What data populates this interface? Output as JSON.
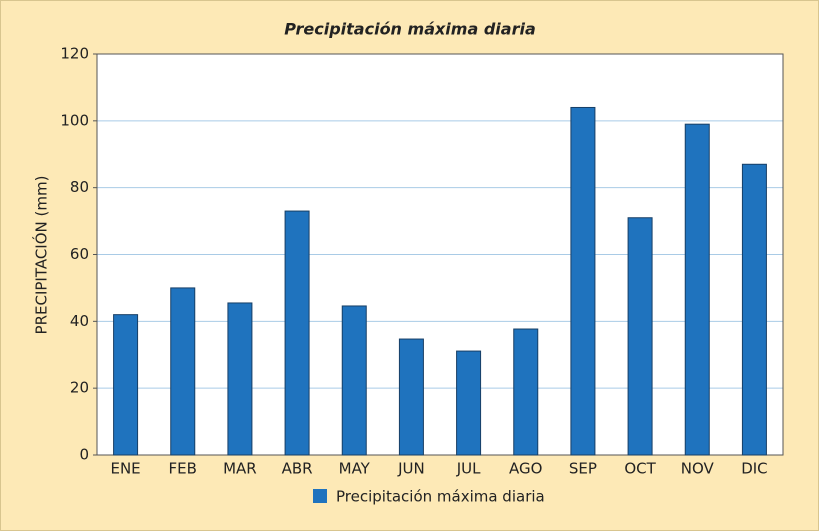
{
  "chart_data": {
    "type": "bar",
    "title": "Precipitación máxima diaria",
    "y_label": "PRECIPITACIÓN  (mm)",
    "categories": [
      "ENE",
      "FEB",
      "MAR",
      "ABR",
      "MAY",
      "JUN",
      "JUL",
      "AGO",
      "SEP",
      "OCT",
      "NOV",
      "DIC"
    ],
    "series": [
      {
        "name": "Precipitación máxima diaria",
        "color": "#1f73be",
        "values": [
          42,
          50,
          45.5,
          73,
          44.6,
          34.7,
          31.1,
          37.7,
          104,
          71,
          99,
          87
        ]
      }
    ],
    "ylim": [
      0,
      120
    ],
    "yticks": [
      0,
      20,
      40,
      60,
      80,
      100,
      120
    ],
    "grid": true,
    "legend": "bottom"
  }
}
